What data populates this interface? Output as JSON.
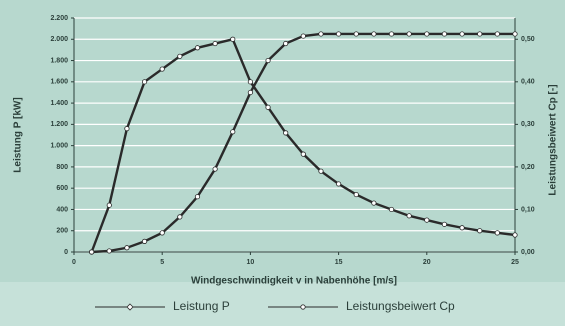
{
  "chart_data": {
    "type": "line",
    "x_label": "Windgeschwindigkeit v in Nabenhöhe [m/s]",
    "y_label": "Leistung P [kW]",
    "y2_label": "Leistungsbeiwert Cp [-]",
    "x": [
      1,
      2,
      3,
      4,
      5,
      6,
      7,
      8,
      9,
      10,
      11,
      12,
      13,
      14,
      15,
      16,
      17,
      18,
      19,
      20,
      21,
      22,
      23,
      24,
      25
    ],
    "series": [
      {
        "name": "Leistung P",
        "color": "#2a2a2a",
        "marker": "diamond",
        "values": [
          0,
          10,
          40,
          100,
          180,
          330,
          520,
          780,
          1130,
          1500,
          1800,
          1960,
          2030,
          2050,
          2050,
          2050,
          2050,
          2050,
          2050,
          2050,
          2050,
          2050,
          2050,
          2050,
          2050
        ]
      },
      {
        "name": "Leistungsbeiwert Cp",
        "color": "#2a2a2a",
        "marker": "circle",
        "axis": "y2",
        "values": [
          0,
          0.11,
          0.29,
          0.4,
          0.43,
          0.46,
          0.48,
          0.49,
          0.5,
          0.4,
          0.34,
          0.28,
          0.23,
          0.19,
          0.16,
          0.135,
          0.115,
          0.1,
          0.085,
          0.075,
          0.065,
          0.057,
          0.05,
          0.045,
          0.04
        ]
      }
    ],
    "xlim": [
      0,
      25
    ],
    "xticks": [
      0,
      5,
      10,
      15,
      20,
      25
    ],
    "ylim": [
      0,
      2200
    ],
    "yticks": [
      0,
      200,
      400,
      600,
      800,
      {
        "value": 1000,
        "label": "1.000"
      },
      {
        "value": 1200,
        "label": "1.200"
      },
      {
        "value": 1400,
        "label": "1.400"
      },
      {
        "value": 1600,
        "label": "1.600"
      },
      {
        "value": 1800,
        "label": "1.800"
      },
      {
        "value": 2000,
        "label": "2.000"
      },
      {
        "value": 2200,
        "label": "2.200"
      }
    ],
    "y2lim": [
      0,
      0.55
    ],
    "y2ticks": [
      {
        "value": 0,
        "label": "0,00"
      },
      {
        "value": 0.1,
        "label": "0,10"
      },
      {
        "value": 0.2,
        "label": "0,20"
      },
      {
        "value": 0.3,
        "label": "0,30"
      },
      {
        "value": 0.4,
        "label": "0,40"
      },
      {
        "value": 0.5,
        "label": "0,50"
      }
    ],
    "grid": true,
    "legend": "bottom"
  }
}
